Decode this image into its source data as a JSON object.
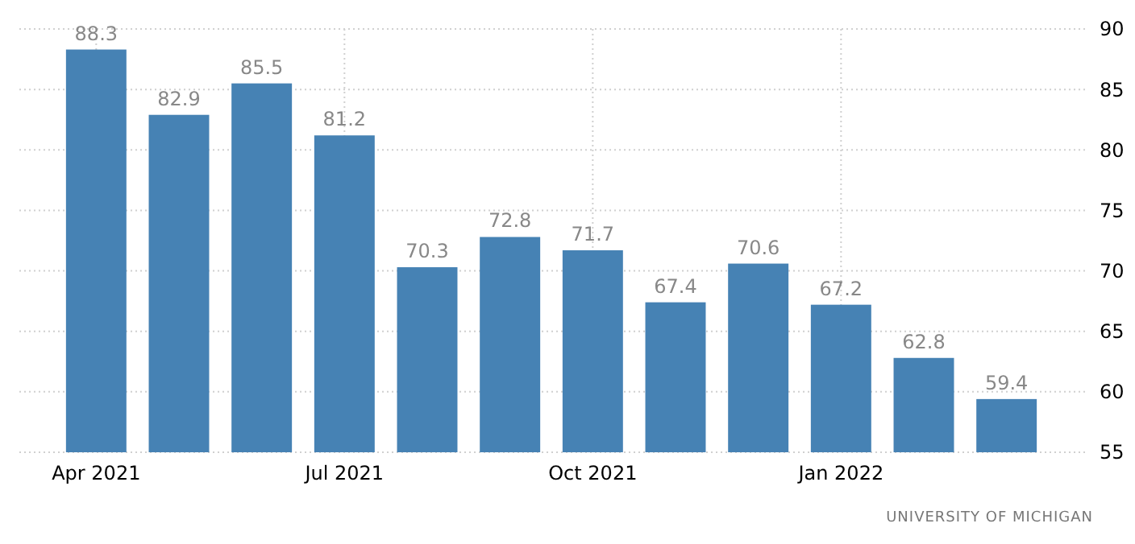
{
  "chart_data": {
    "type": "bar",
    "categories": [
      "Apr 2021",
      null,
      null,
      "Jul 2021",
      null,
      null,
      "Oct 2021",
      null,
      null,
      "Jan 2022",
      null,
      null
    ],
    "values": [
      88.3,
      82.9,
      85.5,
      81.2,
      70.3,
      72.8,
      71.7,
      67.4,
      70.6,
      67.2,
      62.8,
      59.4
    ],
    "color": "#4682b4",
    "ylim": [
      55,
      90
    ],
    "yticks": [
      55,
      60,
      65,
      70,
      75,
      80,
      85,
      90
    ],
    "grid": true,
    "data_labels": true,
    "annotations": [
      "UNIVERSITY OF MICHIGAN"
    ]
  }
}
